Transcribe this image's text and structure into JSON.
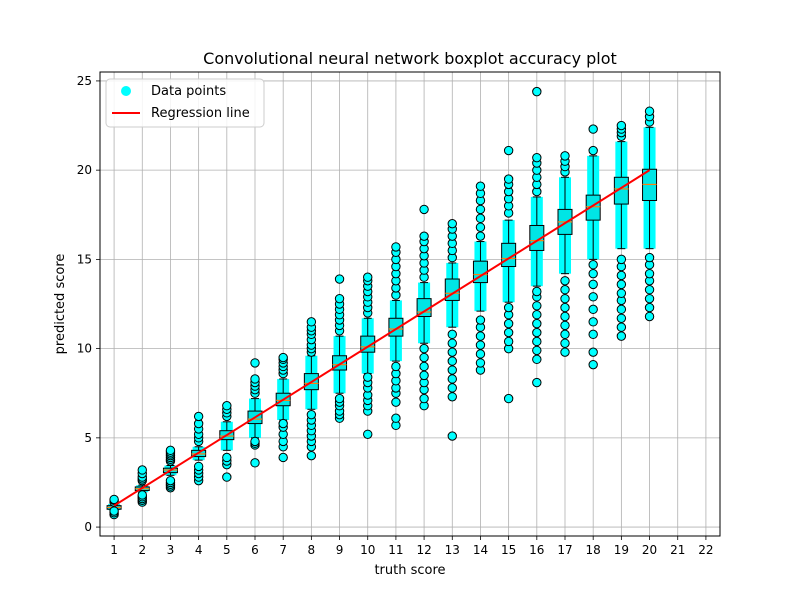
{
  "chart_data": {
    "type": "boxplot",
    "title": "Convolutional neural network boxplot accuracy plot",
    "xlabel": "truth score",
    "ylabel": "predicted score",
    "xlim": [
      0.5,
      22.5
    ],
    "ylim": [
      -0.5,
      25.5
    ],
    "xticks": [
      1,
      2,
      3,
      4,
      5,
      6,
      7,
      8,
      9,
      10,
      11,
      12,
      13,
      14,
      15,
      16,
      17,
      18,
      19,
      20,
      21,
      22
    ],
    "yticks": [
      0,
      5,
      10,
      15,
      20,
      25
    ],
    "grid": true,
    "legend": {
      "position": "top-left",
      "entries": [
        {
          "label": "Data points",
          "color": "#00ffff",
          "marker": "circle"
        },
        {
          "label": "Regression line",
          "color": "#ff0000",
          "marker": "line"
        }
      ]
    },
    "colors": {
      "points": "#00ffff",
      "regression": "#ff0000",
      "median": "#ff7f0e",
      "box": "#000000",
      "grid": "#b0b0b0"
    },
    "regression": {
      "x": [
        1,
        20
      ],
      "y": [
        1.2,
        20.0
      ]
    },
    "boxes": [
      {
        "x": 1,
        "q1": 1.0,
        "median": 1.1,
        "q3": 1.2,
        "whislo": 0.95,
        "whishi": 1.3,
        "outliers": [
          0.7,
          0.8,
          0.9,
          1.4,
          1.5,
          1.55
        ]
      },
      {
        "x": 2,
        "q1": 2.05,
        "median": 2.15,
        "q3": 2.25,
        "whislo": 1.95,
        "whishi": 2.35,
        "outliers": [
          1.4,
          1.5,
          1.6,
          1.7,
          1.8,
          2.6,
          2.7,
          2.8,
          3.0,
          3.2
        ]
      },
      {
        "x": 3,
        "q1": 3.05,
        "median": 3.2,
        "q3": 3.3,
        "whislo": 2.9,
        "whishi": 3.45,
        "outliers": [
          2.2,
          2.3,
          2.4,
          2.5,
          2.6,
          3.7,
          3.8,
          3.9,
          4.0,
          4.1,
          4.2,
          4.3
        ]
      },
      {
        "x": 4,
        "q1": 3.95,
        "median": 4.1,
        "q3": 4.3,
        "whislo": 3.75,
        "whishi": 4.5,
        "outliers": [
          2.6,
          2.8,
          3.0,
          3.2,
          3.4,
          4.8,
          5.0,
          5.2,
          5.5,
          5.8,
          6.2
        ]
      },
      {
        "x": 5,
        "q1": 4.9,
        "median": 5.1,
        "q3": 5.4,
        "whislo": 4.3,
        "whishi": 5.9,
        "outliers": [
          2.8,
          3.5,
          3.7,
          3.9,
          6.2,
          6.4,
          6.6,
          6.8
        ]
      },
      {
        "x": 6,
        "q1": 5.8,
        "median": 6.05,
        "q3": 6.5,
        "whislo": 5.0,
        "whishi": 7.2,
        "outliers": [
          3.6,
          4.6,
          4.7,
          4.8,
          7.5,
          7.7,
          7.9,
          8.1,
          8.3,
          9.2
        ]
      },
      {
        "x": 7,
        "q1": 6.8,
        "median": 7.1,
        "q3": 7.5,
        "whislo": 6.0,
        "whishi": 8.3,
        "outliers": [
          3.9,
          4.5,
          4.8,
          5.2,
          5.6,
          5.8,
          8.6,
          8.8,
          9.0,
          9.2,
          9.4,
          9.5
        ]
      },
      {
        "x": 8,
        "q1": 7.7,
        "median": 8.05,
        "q3": 8.6,
        "whislo": 6.6,
        "whishi": 9.6,
        "outliers": [
          4.0,
          4.5,
          4.8,
          5.1,
          5.4,
          5.7,
          6.0,
          6.3,
          9.8,
          10.0,
          10.2,
          10.5,
          10.8,
          11.0,
          11.2,
          11.5
        ]
      },
      {
        "x": 9,
        "q1": 8.8,
        "median": 9.1,
        "q3": 9.6,
        "whislo": 7.5,
        "whishi": 10.7,
        "outliers": [
          6.1,
          6.3,
          6.5,
          6.8,
          7.0,
          7.2,
          11.0,
          11.3,
          11.6,
          11.9,
          12.2,
          12.5,
          12.8,
          13.9
        ]
      },
      {
        "x": 10,
        "q1": 9.8,
        "median": 10.1,
        "q3": 10.7,
        "whislo": 8.6,
        "whishi": 11.7,
        "outliers": [
          5.2,
          6.5,
          6.8,
          7.1,
          7.4,
          7.8,
          8.1,
          8.4,
          12.0,
          12.3,
          12.6,
          12.9,
          13.2,
          13.5,
          13.8,
          14.0
        ]
      },
      {
        "x": 11,
        "q1": 10.7,
        "median": 11.1,
        "q3": 11.7,
        "whislo": 9.3,
        "whishi": 12.7,
        "outliers": [
          5.7,
          6.1,
          7.0,
          7.5,
          7.8,
          8.2,
          8.6,
          9.0,
          13.0,
          13.4,
          13.8,
          14.2,
          14.6,
          15.0,
          15.4,
          15.7
        ]
      },
      {
        "x": 12,
        "q1": 11.8,
        "median": 12.05,
        "q3": 12.8,
        "whislo": 10.3,
        "whishi": 13.7,
        "outliers": [
          6.8,
          7.2,
          7.7,
          8.1,
          8.5,
          9.0,
          9.5,
          10.0,
          14.0,
          14.4,
          14.8,
          15.2,
          15.6,
          16.0,
          16.3,
          17.8
        ]
      },
      {
        "x": 13,
        "q1": 12.7,
        "median": 13.1,
        "q3": 13.9,
        "whislo": 11.2,
        "whishi": 14.8,
        "outliers": [
          5.1,
          7.3,
          7.8,
          8.3,
          8.8,
          9.3,
          9.8,
          10.3,
          10.8,
          15.1,
          15.5,
          15.9,
          16.3,
          16.7,
          17.0
        ]
      },
      {
        "x": 14,
        "q1": 13.7,
        "median": 14.15,
        "q3": 14.9,
        "whislo": 12.1,
        "whishi": 16.0,
        "outliers": [
          8.8,
          9.2,
          9.7,
          10.2,
          10.7,
          11.2,
          11.6,
          16.3,
          16.8,
          17.3,
          17.8,
          18.3,
          18.7,
          19.1
        ]
      },
      {
        "x": 15,
        "q1": 14.6,
        "median": 15.05,
        "q3": 15.9,
        "whislo": 12.6,
        "whishi": 17.2,
        "outliers": [
          7.2,
          10.0,
          10.4,
          10.9,
          11.4,
          11.9,
          12.3,
          17.6,
          18.0,
          18.4,
          18.8,
          19.2,
          19.5,
          21.1
        ]
      },
      {
        "x": 16,
        "q1": 15.5,
        "median": 16.05,
        "q3": 16.9,
        "whislo": 13.5,
        "whishi": 18.5,
        "outliers": [
          8.1,
          9.4,
          9.9,
          10.4,
          10.9,
          11.4,
          11.9,
          12.4,
          12.9,
          13.2,
          18.8,
          19.2,
          19.6,
          20.0,
          20.4,
          20.7,
          24.4
        ]
      },
      {
        "x": 17,
        "q1": 16.4,
        "median": 17.1,
        "q3": 17.8,
        "whislo": 14.2,
        "whishi": 19.6,
        "outliers": [
          9.8,
          10.3,
          10.8,
          11.3,
          11.8,
          12.3,
          12.8,
          13.3,
          13.8,
          19.9,
          20.2,
          20.5,
          20.8
        ]
      },
      {
        "x": 18,
        "q1": 17.2,
        "median": 17.95,
        "q3": 18.6,
        "whislo": 15.0,
        "whishi": 20.8,
        "outliers": [
          9.1,
          9.8,
          10.8,
          11.5,
          12.2,
          12.9,
          13.6,
          14.2,
          14.7,
          21.1,
          22.3
        ]
      },
      {
        "x": 19,
        "q1": 18.1,
        "median": 18.95,
        "q3": 19.6,
        "whislo": 15.6,
        "whishi": 21.6,
        "outliers": [
          10.7,
          11.2,
          11.7,
          12.2,
          12.7,
          13.1,
          13.6,
          14.1,
          14.6,
          15.0,
          21.9,
          22.1,
          22.3,
          22.5
        ]
      },
      {
        "x": 20,
        "q1": 18.3,
        "median": 19.2,
        "q3": 20.05,
        "whislo": 15.6,
        "whishi": 22.4,
        "outliers": [
          11.8,
          12.3,
          12.8,
          13.3,
          13.8,
          14.2,
          14.7,
          15.1,
          22.7,
          23.0,
          23.3
        ]
      }
    ]
  }
}
